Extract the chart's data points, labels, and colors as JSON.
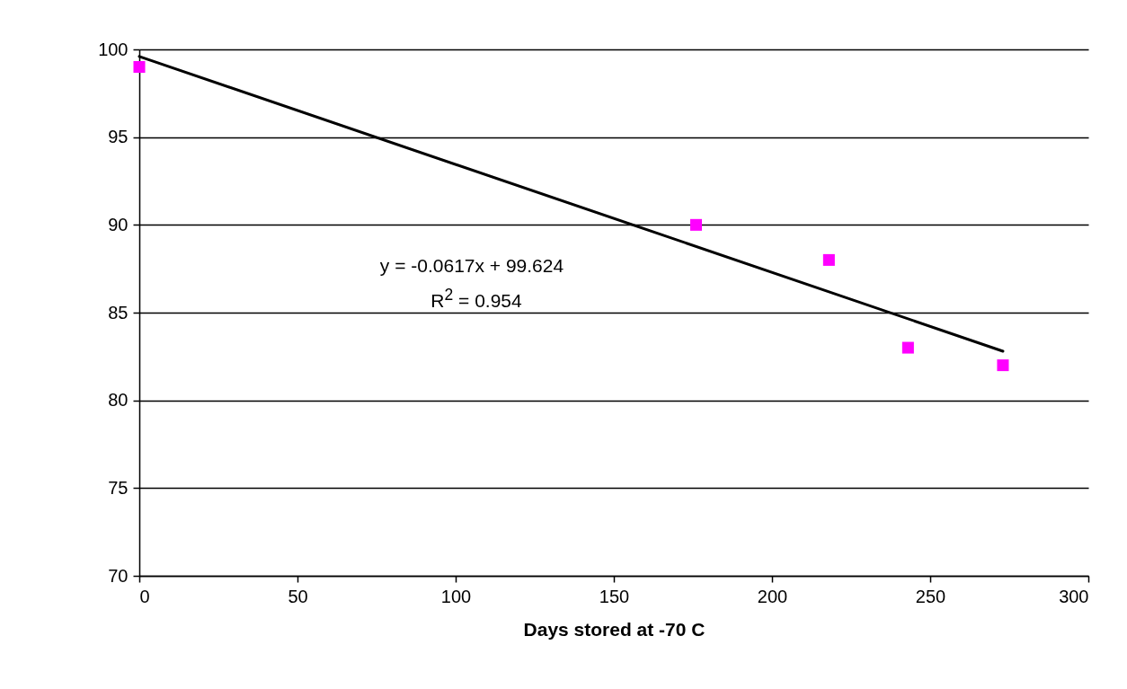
{
  "chart_data": {
    "type": "scatter",
    "xlabel": "Days stored at -70 C",
    "xlim": [
      0,
      300
    ],
    "xticks": [
      0,
      50,
      100,
      150,
      200,
      250,
      300
    ],
    "ylim": [
      70,
      100
    ],
    "yticks": [
      70,
      75,
      80,
      85,
      90,
      95,
      100
    ],
    "grid": "y",
    "series": [
      {
        "color": "#ff00ff",
        "marker": "square",
        "x": [
          0,
          176,
          218,
          243,
          273
        ],
        "values": [
          99,
          90,
          88,
          83,
          82
        ]
      },
      {
        "type": "line",
        "color": "#000000",
        "marker": "none",
        "x": [
          0,
          273
        ],
        "values": [
          99.6,
          82.8
        ]
      }
    ],
    "annotations": [
      "y = -0.0617x + 99.624",
      "R$^{2}$ = 0.954"
    ]
  }
}
